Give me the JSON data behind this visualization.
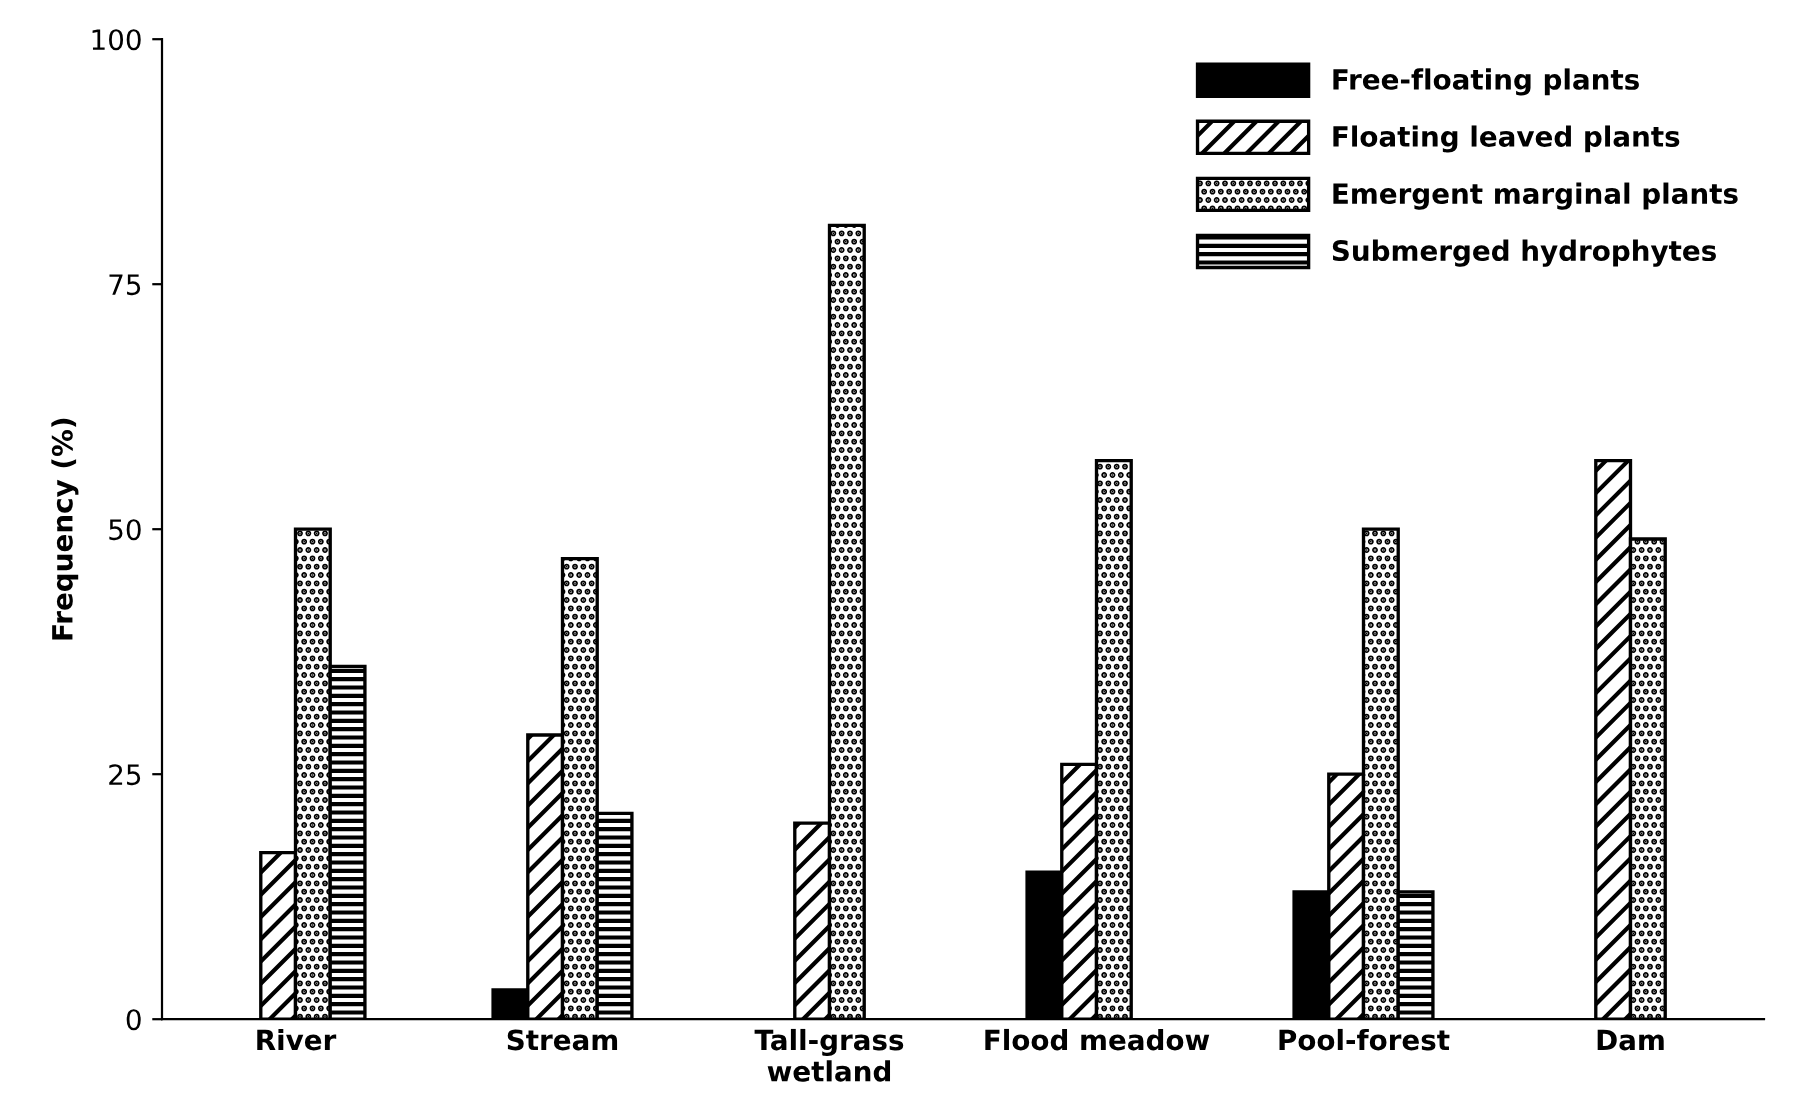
{
  "chart_data": {
    "type": "bar",
    "ylabel": "Frequency (%)",
    "categories": [
      "River",
      "Stream",
      "Tall-grass\nwetland",
      "Flood meadow",
      "Pool-forest",
      "Dam"
    ],
    "series": [
      {
        "name": "Free-floating plants",
        "color": "#000000",
        "values": [
          null,
          3,
          null,
          15,
          13,
          null
        ]
      },
      {
        "name": "Floating leaved plants",
        "color": "#000000",
        "values": [
          17,
          29,
          20,
          26,
          25,
          57
        ]
      },
      {
        "name": "Emergent marginal plants",
        "color": "#000000",
        "values": [
          50,
          47,
          81,
          57,
          50,
          49
        ]
      },
      {
        "name": "Submerged hydrophytes",
        "color": "#000000",
        "values": [
          36,
          21,
          null,
          null,
          13,
          null
        ]
      }
    ],
    "ylim": [
      0,
      100
    ],
    "yticks": [
      0,
      25,
      50,
      75,
      100
    ],
    "grid": false,
    "legend": "top right"
  }
}
